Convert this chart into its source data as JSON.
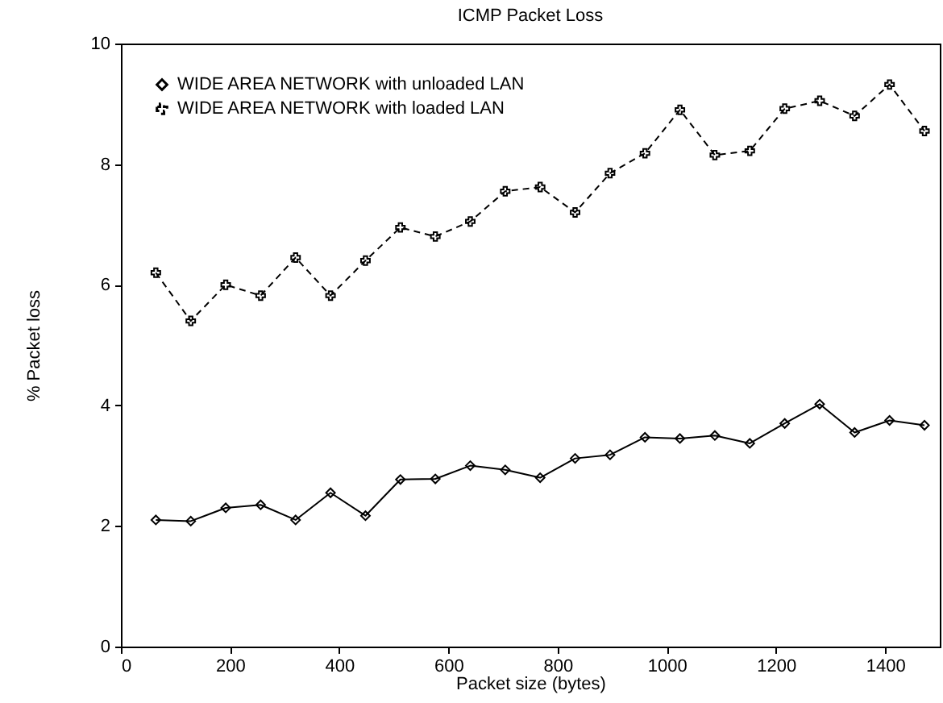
{
  "chart_data": {
    "type": "line",
    "title": "ICMP Packet Loss",
    "xlabel": "Packet size (bytes)",
    "ylabel": "% Packet loss",
    "x": [
      64,
      128,
      192,
      256,
      320,
      384,
      448,
      512,
      576,
      640,
      704,
      768,
      832,
      896,
      960,
      1024,
      1088,
      1152,
      1216,
      1280,
      1344,
      1408,
      1472
    ],
    "series": [
      {
        "name": "WIDE AREA NETWORK with unloaded LAN",
        "color": "#000000",
        "marker": "diamond",
        "line_style": "solid",
        "values": [
          2.1,
          2.08,
          2.3,
          2.35,
          2.1,
          2.55,
          2.17,
          2.77,
          2.78,
          3.0,
          2.93,
          2.8,
          3.12,
          3.18,
          3.47,
          3.45,
          3.5,
          3.37,
          3.7,
          4.02,
          3.55,
          3.75,
          3.67
        ]
      },
      {
        "name": "WIDE AREA NETWORK with loaded LAN",
        "color": "#000000",
        "marker": "cross",
        "line_style": "dashed",
        "values": [
          6.2,
          5.4,
          6.0,
          5.82,
          6.45,
          5.82,
          6.4,
          6.95,
          6.8,
          7.05,
          7.55,
          7.62,
          7.2,
          7.85,
          8.18,
          8.9,
          8.15,
          8.22,
          8.92,
          9.05,
          8.8,
          9.32,
          8.55
        ]
      }
    ],
    "xlim": [
      0,
      1500
    ],
    "xticks": [
      0,
      200,
      400,
      600,
      800,
      1000,
      1200,
      1400
    ],
    "ylim": [
      0,
      10
    ],
    "yticks": [
      0,
      2,
      4,
      6,
      8,
      10
    ],
    "legend": "top left",
    "grid": false
  }
}
